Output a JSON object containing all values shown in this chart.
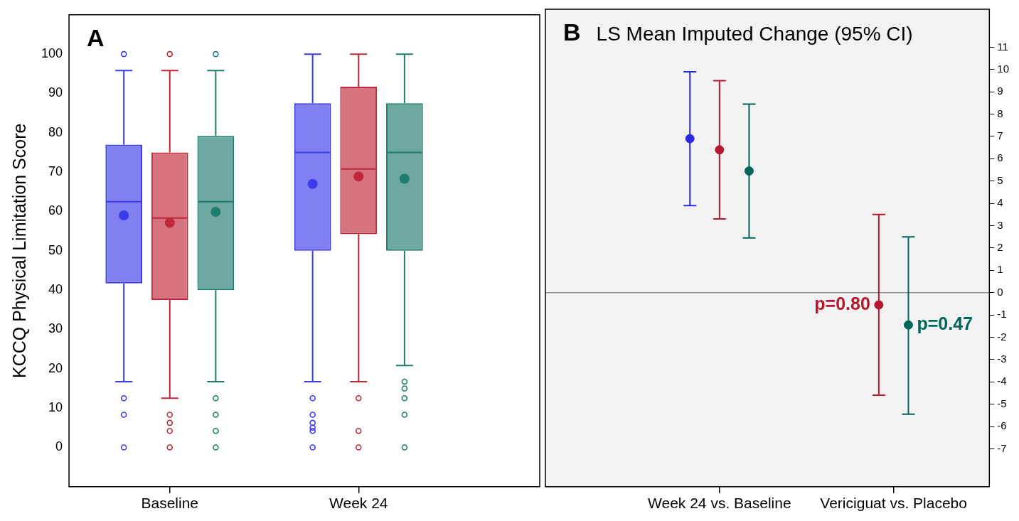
{
  "chart_data": [
    {
      "type": "box",
      "ylabel": "KCCQ Physical Limitation Score",
      "annotations": [
        "A"
      ],
      "categories": [
        "Baseline",
        "Week 24"
      ],
      "ylim": [
        -10,
        110
      ],
      "yticks": [
        0,
        10,
        20,
        30,
        40,
        50,
        60,
        70,
        80,
        90,
        100
      ],
      "series": [
        {
          "color": "#3b3bea",
          "boxes": [
            {
              "low": 16.7,
              "q1": 41.7,
              "median": 62.5,
              "q3": 77,
              "high": 95.8,
              "mean": 59,
              "outliers": [
                100,
                12.5,
                8.3,
                0
              ]
            },
            {
              "low": 16.7,
              "q1": 50,
              "median": 75,
              "q3": 87.5,
              "high": 100,
              "mean": 67,
              "outliers": [
                12.5,
                8.3,
                6.25,
                5,
                4.2,
                0
              ]
            }
          ]
        },
        {
          "color": "#c0283a",
          "boxes": [
            {
              "low": 12.5,
              "q1": 37.5,
              "median": 58.3,
              "q3": 75,
              "high": 95.8,
              "mean": 57.1,
              "outliers": [
                100,
                8.3,
                6.25,
                4.2,
                0
              ]
            },
            {
              "low": 16.7,
              "q1": 54.2,
              "median": 70.8,
              "q3": 91.7,
              "high": 100,
              "mean": 68.9,
              "outliers": [
                12.5,
                4.2,
                0
              ]
            }
          ]
        },
        {
          "color": "#1e7b6e",
          "boxes": [
            {
              "low": 16.7,
              "q1": 40,
              "median": 62.5,
              "q3": 79.2,
              "high": 95.8,
              "mean": 59.9,
              "outliers": [
                100,
                12.5,
                8.3,
                4.2,
                0
              ]
            },
            {
              "low": 20.8,
              "q1": 50,
              "median": 75,
              "q3": 87.5,
              "high": 100,
              "mean": 68.3,
              "outliers": [
                16.7,
                15,
                12.5,
                8.3,
                0
              ]
            }
          ]
        }
      ]
    },
    {
      "type": "scatter",
      "title": "LS Mean Imputed Change (95% CI)",
      "annotations": [
        "B",
        "p=0.80",
        "p=0.47"
      ],
      "categories": [
        "Week 24 vs. Baseline",
        "Vericiguat vs. Placebo"
      ],
      "ylim": [
        -8.7,
        12.7
      ],
      "yticks": [
        -7,
        -6,
        -5,
        -4,
        -3,
        -2,
        -1,
        0,
        1,
        2,
        3,
        4,
        5,
        6,
        7,
        8,
        9,
        10,
        11
      ],
      "marker": "circle",
      "ref_lines": [
        {
          "axis": "y",
          "value": 0,
          "color": "#999999"
        }
      ],
      "series": [
        {
          "color": "#2a2ae0",
          "values": [
            6.9,
            null
          ],
          "errors": [
            [
              3.9,
              9.9
            ],
            null
          ]
        },
        {
          "color": "#b5172e",
          "values": [
            6.4,
            -0.55
          ],
          "errors": [
            [
              3.3,
              9.5
            ],
            [
              -4.6,
              3.5
            ]
          ]
        },
        {
          "color": "#006658",
          "values": [
            5.45,
            -1.45
          ],
          "errors": [
            [
              2.45,
              8.45
            ],
            [
              -5.45,
              2.5
            ]
          ]
        }
      ]
    }
  ]
}
